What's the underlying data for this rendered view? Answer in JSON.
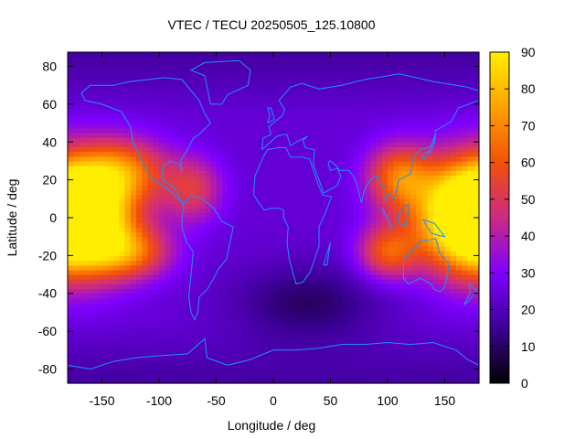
{
  "chart_data": {
    "type": "heatmap",
    "title": "VTEC / TECU 20250505_125.10800",
    "xlabel": "Longitude / deg",
    "ylabel": "Latitude / deg",
    "xlim": [
      -180,
      180
    ],
    "ylim": [
      -87.5,
      87.5
    ],
    "x_ticks": [
      -150,
      -100,
      -50,
      0,
      50,
      100,
      150
    ],
    "y_ticks": [
      -80,
      -60,
      -40,
      -20,
      0,
      20,
      40,
      60,
      80
    ],
    "colorbar": {
      "range": [
        0,
        90
      ],
      "ticks": [
        0,
        10,
        20,
        30,
        40,
        50,
        60,
        70,
        80,
        90
      ],
      "palette": [
        "#000000",
        "#3c0096",
        "#7f00ff",
        "#cc2a83",
        "#f3500a",
        "#ffa200",
        "#ffee00"
      ]
    },
    "grid_resolution": {
      "lon_step": 5,
      "lat_step": 2.5
    },
    "features": [
      {
        "lon": -175,
        "lat": 0,
        "peak": 88,
        "width_lon": 32,
        "width_lat": 20
      },
      {
        "lon": 175,
        "lat": 2,
        "peak": 84,
        "width_lon": 38,
        "width_lat": 20
      },
      {
        "lon": 110,
        "lat": 22,
        "peak": 62,
        "width_lon": 20,
        "width_lat": 12
      },
      {
        "lon": 100,
        "lat": -18,
        "peak": 58,
        "width_lon": 18,
        "width_lat": 10
      },
      {
        "lon": -130,
        "lat": 25,
        "peak": 60,
        "width_lon": 28,
        "width_lat": 12
      },
      {
        "lon": -125,
        "lat": -18,
        "peak": 58,
        "width_lon": 25,
        "width_lat": 10
      },
      {
        "lon": -70,
        "lat": 15,
        "peak": 50,
        "width_lon": 18,
        "width_lat": 12
      }
    ],
    "background_level": 24,
    "polar_level": 17,
    "low_region": {
      "lon": 30,
      "lat": -45,
      "depth": 14
    },
    "outlines_color": "#1e90ff"
  }
}
